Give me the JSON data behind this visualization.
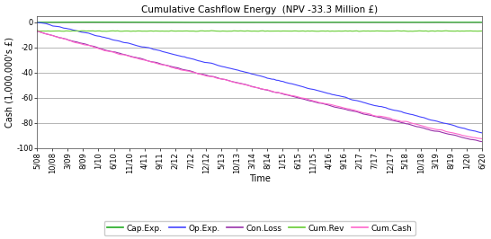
{
  "title": "Cumulative Cashflow Energy  (NPV -33.3 Million £)",
  "xlabel": "Time",
  "ylabel": "Cash (1,000,000's £)",
  "ylim": [
    -100,
    5
  ],
  "yticks": [
    0,
    -20,
    -40,
    -60,
    -80,
    -100
  ],
  "ytick_labels": [
    "0",
    "-20",
    "-40",
    "-60",
    "-80",
    "-100"
  ],
  "x_tick_labels": [
    "5/08",
    "10/08",
    "3/09",
    "8/09",
    "1/10",
    "6/10",
    "11/10",
    "4/11",
    "9/11",
    "2/12",
    "7/12",
    "12/12",
    "5/13",
    "10/13",
    "3/14",
    "8/14",
    "1/15",
    "6/15",
    "11/15",
    "4/16",
    "9/16",
    "2/17",
    "7/17",
    "12/17",
    "5/18",
    "10/18",
    "3/19",
    "8/19",
    "1/20",
    "6/20"
  ],
  "cap_exp_color": "#22AA22",
  "op_exp_color": "#4444FF",
  "con_loss_color": "#9933AA",
  "cum_rev_color": "#66CC33",
  "cum_cash_color": "#FF66CC",
  "legend_labels": [
    "Cap.Exp.",
    "Op.Exp.",
    "Con.Loss",
    "Cum.Rev",
    "Cum.Cash"
  ],
  "background_color": "#FFFFFF",
  "grid_color": "#999999",
  "title_fontsize": 7.5,
  "axis_label_fontsize": 7,
  "tick_fontsize": 6,
  "legend_fontsize": 6.5
}
